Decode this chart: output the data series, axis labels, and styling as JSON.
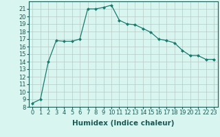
{
  "x": [
    0,
    1,
    2,
    3,
    4,
    5,
    6,
    7,
    8,
    9,
    10,
    11,
    12,
    13,
    14,
    15,
    16,
    17,
    18,
    19,
    20,
    21,
    22,
    23
  ],
  "y": [
    8.5,
    9.0,
    14.0,
    16.8,
    16.7,
    16.7,
    17.0,
    21.0,
    21.0,
    21.2,
    21.5,
    19.5,
    19.0,
    18.9,
    18.4,
    17.9,
    17.0,
    16.8,
    16.5,
    15.5,
    14.8,
    14.8,
    14.3,
    14.3
  ],
  "line_color": "#1a7a6e",
  "marker": "D",
  "marker_size": 2.0,
  "bg_color": "#d8f5f0",
  "grid_color": "#b8c8c4",
  "xlabel": "Humidex (Indice chaleur)",
  "xlim": [
    -0.5,
    23.5
  ],
  "ylim": [
    8,
    22
  ],
  "yticks": [
    8,
    9,
    10,
    11,
    12,
    13,
    14,
    15,
    16,
    17,
    18,
    19,
    20,
    21
  ],
  "xticks": [
    0,
    1,
    2,
    3,
    4,
    5,
    6,
    7,
    8,
    9,
    10,
    11,
    12,
    13,
    14,
    15,
    16,
    17,
    18,
    19,
    20,
    21,
    22,
    23
  ],
  "tick_label_fontsize": 6.0,
  "xlabel_fontsize": 7.5,
  "linewidth": 0.9
}
